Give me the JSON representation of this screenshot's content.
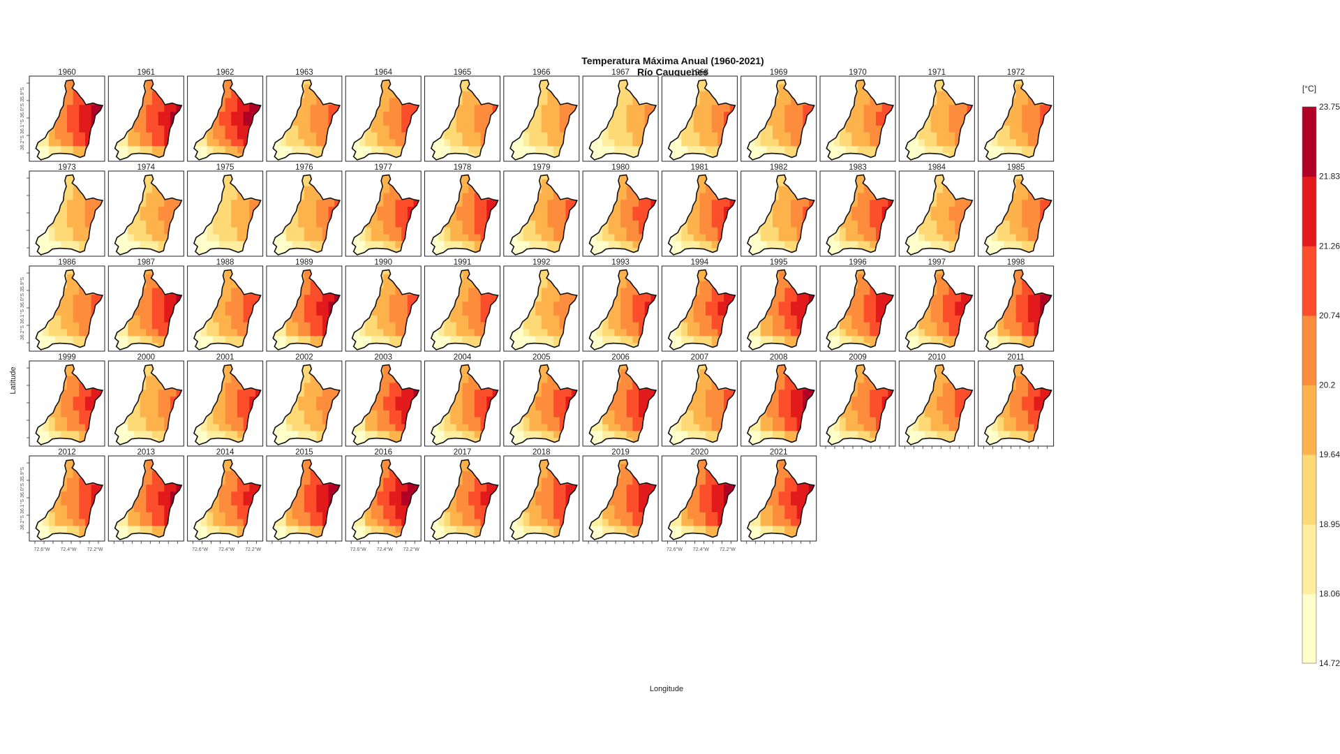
{
  "chart_data": {
    "type": "heatmap",
    "title": "Temperatura Máxima Anual (1960-2021)",
    "subtitle": "Río Cauquenes",
    "xlabel": "Longitude",
    "ylabel": "Latitude",
    "x_tick_labels": [
      "72.6°W",
      "72.4°W",
      "72.2°W"
    ],
    "y_tick_labels": [
      "36.2°S",
      "36.1°S",
      "36.0°S",
      "35.9°S"
    ],
    "years": [
      1960,
      1961,
      1962,
      1963,
      1964,
      1965,
      1966,
      1967,
      1968,
      1969,
      1970,
      1971,
      1972,
      1973,
      1974,
      1975,
      1976,
      1977,
      1978,
      1979,
      1980,
      1981,
      1982,
      1983,
      1984,
      1985,
      1986,
      1987,
      1988,
      1989,
      1990,
      1991,
      1992,
      1993,
      1994,
      1995,
      1996,
      1997,
      1998,
      1999,
      2000,
      2001,
      2002,
      2003,
      2004,
      2005,
      2006,
      2007,
      2008,
      2009,
      2010,
      2011,
      2012,
      2013,
      2014,
      2015,
      2016,
      2017,
      2018,
      2019,
      2020,
      2021
    ],
    "panel_intensity": [
      0.92,
      0.88,
      0.95,
      0.55,
      0.62,
      0.48,
      0.4,
      0.35,
      0.5,
      0.55,
      0.58,
      0.48,
      0.55,
      0.42,
      0.45,
      0.35,
      0.5,
      0.7,
      0.72,
      0.55,
      0.65,
      0.68,
      0.5,
      0.7,
      0.45,
      0.55,
      0.55,
      0.82,
      0.62,
      0.88,
      0.55,
      0.6,
      0.45,
      0.68,
      0.75,
      0.85,
      0.8,
      0.78,
      0.92,
      0.75,
      0.5,
      0.68,
      0.45,
      0.85,
      0.68,
      0.7,
      0.8,
      0.55,
      0.9,
      0.7,
      0.6,
      0.75,
      0.72,
      0.88,
      0.75,
      0.92,
      0.95,
      0.75,
      0.72,
      0.8,
      0.92,
      0.85
    ],
    "colorbar": {
      "unit": "[°C]",
      "breaks": [
        "14.72",
        "18.06",
        "18.95",
        "19.64",
        "20.2",
        "20.74",
        "21.26",
        "21.83",
        "23.75"
      ],
      "colors": [
        "#FFFFCC",
        "#FFEDA0",
        "#FED976",
        "#FEB24C",
        "#FD8D3C",
        "#FC4E2A",
        "#E31A1C",
        "#B10026"
      ]
    },
    "layout": {
      "columns": 13,
      "rows": 5
    }
  }
}
